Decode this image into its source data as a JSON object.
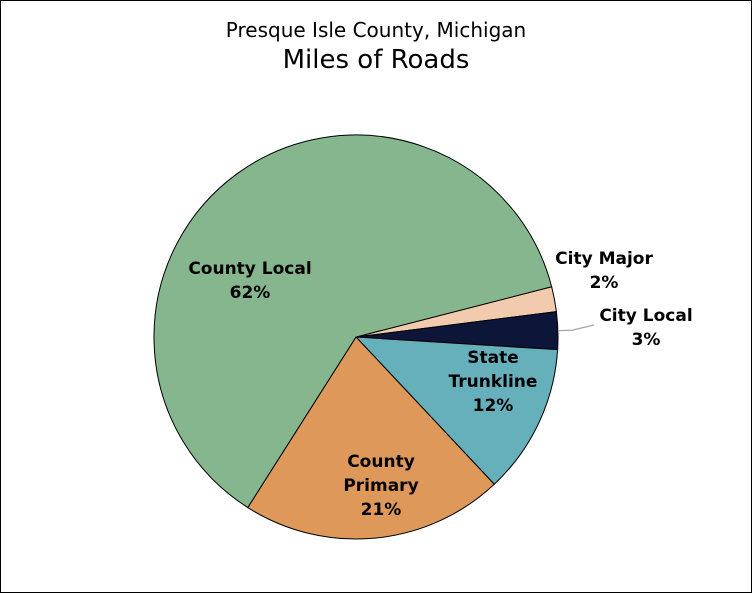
{
  "chart_data": {
    "type": "pie",
    "title": "Presque Isle County, Michigan",
    "subtitle": "Miles of Roads",
    "slices": [
      {
        "label": "City Major",
        "value_label": "2%",
        "value": 2,
        "color": "#F2CBAE"
      },
      {
        "label": "City Local",
        "value_label": "3%",
        "value": 3,
        "color": "#0D1638"
      },
      {
        "label": "State Trunkline",
        "value_label": "12%",
        "value": 12,
        "color": "#66B0BB"
      },
      {
        "label": "County Primary",
        "value_label": "21%",
        "value": 21,
        "color": "#DE995A"
      },
      {
        "label": "County Local",
        "value_label": "62%",
        "value": 62,
        "color": "#85B68D"
      }
    ],
    "legend": "none"
  }
}
